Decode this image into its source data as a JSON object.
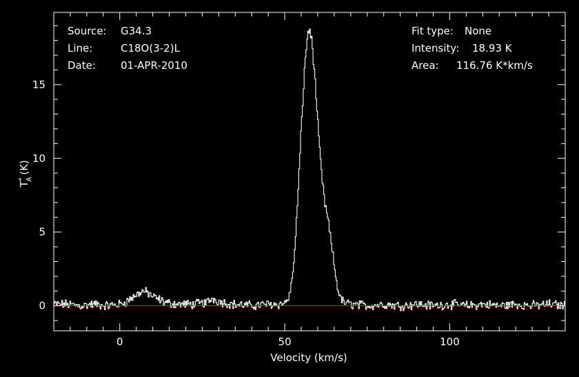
{
  "header": {
    "source_label": "Source:",
    "source_value": "G34.3",
    "line_label": "Line:",
    "line_value": "C18O(3-2)L",
    "date_label": "Date:",
    "date_value": "01-APR-2010",
    "fit_label": "Fit type:",
    "fit_value": "None",
    "intensity_label": "Intensity:",
    "intensity_value": "18.93 K",
    "area_label": "Area:",
    "area_value": "116.76 K*km/s"
  },
  "chart_data": {
    "type": "line",
    "xlabel": "Velocity (km/s)",
    "ylabel": "T*A (K)",
    "xlim": [
      -20,
      135
    ],
    "ylim": [
      -1.7,
      19.9
    ],
    "xticks": [
      0,
      50,
      100
    ],
    "yticks": [
      0,
      5,
      10,
      15
    ],
    "grid": false,
    "baseline": 0,
    "colors": {
      "background": "#000000",
      "axes": "#ffffff",
      "spectrum": "#ffffff",
      "baseline": "#ff2020"
    },
    "series": [
      {
        "x": [
          -20,
          -16,
          -12,
          -8,
          -4,
          0,
          2,
          4,
          6,
          7,
          8,
          9,
          10,
          12,
          14,
          18,
          22,
          26,
          28,
          30,
          34,
          40,
          44,
          48,
          50,
          51,
          52,
          53,
          54,
          55,
          56,
          57,
          58,
          59,
          60,
          61,
          62,
          63,
          64,
          65,
          66,
          67,
          68,
          70,
          75,
          80,
          85,
          90,
          95,
          100,
          105,
          110,
          115,
          120,
          125,
          130,
          135
        ],
        "values": [
          0.1,
          0.1,
          0.0,
          0.1,
          0.0,
          0.1,
          0.3,
          0.6,
          0.9,
          1.0,
          0.9,
          0.8,
          0.6,
          0.4,
          0.2,
          0.1,
          0.1,
          0.2,
          0.5,
          0.3,
          0.1,
          0.0,
          0.1,
          0.1,
          0.2,
          0.5,
          1.5,
          4.0,
          8.0,
          12.5,
          16.5,
          18.8,
          18.2,
          15.5,
          12.0,
          9.0,
          7.0,
          5.8,
          4.2,
          2.5,
          1.1,
          0.4,
          0.2,
          0.1,
          0.0,
          0.1,
          0.0,
          0.1,
          0.0,
          0.1,
          0.0,
          0.1,
          0.0,
          0.1,
          0.0,
          0.1,
          0.0
        ]
      }
    ]
  }
}
